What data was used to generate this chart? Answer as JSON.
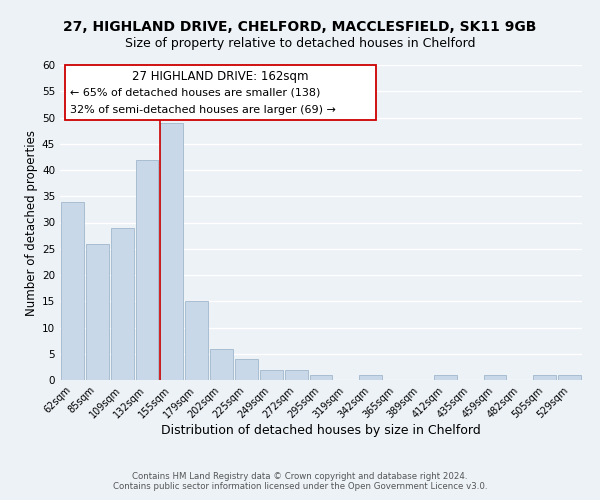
{
  "title1": "27, HIGHLAND DRIVE, CHELFORD, MACCLESFIELD, SK11 9GB",
  "title2": "Size of property relative to detached houses in Chelford",
  "xlabel": "Distribution of detached houses by size in Chelford",
  "ylabel": "Number of detached properties",
  "bar_labels": [
    "62sqm",
    "85sqm",
    "109sqm",
    "132sqm",
    "155sqm",
    "179sqm",
    "202sqm",
    "225sqm",
    "249sqm",
    "272sqm",
    "295sqm",
    "319sqm",
    "342sqm",
    "365sqm",
    "389sqm",
    "412sqm",
    "435sqm",
    "459sqm",
    "482sqm",
    "505sqm",
    "529sqm"
  ],
  "bar_values": [
    34,
    26,
    29,
    42,
    49,
    15,
    6,
    4,
    2,
    2,
    1,
    0,
    1,
    0,
    0,
    1,
    0,
    1,
    0,
    1,
    1
  ],
  "bar_color": "#c8d8e8",
  "bar_edge_color": "#a0b8cc",
  "red_line_bar_index": 4,
  "red_line_color": "#cc0000",
  "annotation_text1": "27 HIGHLAND DRIVE: 162sqm",
  "annotation_text2": "← 65% of detached houses are smaller (138)",
  "annotation_text3": "32% of semi-detached houses are larger (69) →",
  "ylim": [
    0,
    60
  ],
  "yticks": [
    0,
    5,
    10,
    15,
    20,
    25,
    30,
    35,
    40,
    45,
    50,
    55,
    60
  ],
  "footer1": "Contains HM Land Registry data © Crown copyright and database right 2024.",
  "footer2": "Contains public sector information licensed under the Open Government Licence v3.0.",
  "bg_color": "#edf2f7",
  "plot_bg_color": "#edf2f7",
  "grid_color": "#ffffff",
  "title1_fontsize": 10,
  "title2_fontsize": 9,
  "xlabel_fontsize": 9,
  "ylabel_fontsize": 8.5
}
